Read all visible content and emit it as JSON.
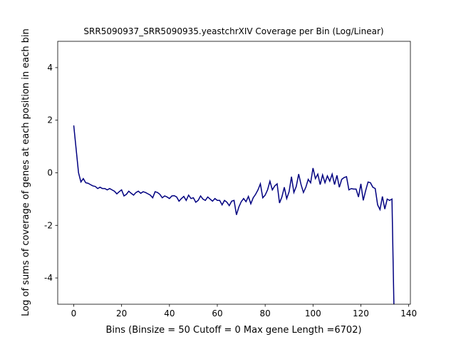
{
  "chart_data": {
    "type": "line",
    "title": "SRR5090937_SRR5090935.yeastchrXIV Coverage per Bin (Log/Linear)",
    "x_label": "Bins  (Binsize = 50 Cutoff = 0 Max gene Length =6702)",
    "y_label": "Log of sums of coverage of genes at each position in each bin",
    "color": "#000080",
    "x": [
      0,
      1,
      2,
      3,
      4,
      5,
      6,
      7,
      8,
      9,
      10,
      11,
      12,
      13,
      14,
      15,
      16,
      17,
      18,
      19,
      20,
      21,
      22,
      23,
      24,
      25,
      26,
      27,
      28,
      29,
      30,
      31,
      32,
      33,
      34,
      35,
      36,
      37,
      38,
      39,
      40,
      41,
      42,
      43,
      44,
      45,
      46,
      47,
      48,
      49,
      50,
      51,
      52,
      53,
      54,
      55,
      56,
      57,
      58,
      59,
      60,
      61,
      62,
      63,
      64,
      65,
      66,
      67,
      68,
      69,
      70,
      71,
      72,
      73,
      74,
      75,
      76,
      77,
      78,
      79,
      80,
      81,
      82,
      83,
      84,
      85,
      86,
      87,
      88,
      89,
      90,
      91,
      92,
      93,
      94,
      95,
      96,
      97,
      98,
      99,
      100,
      101,
      102,
      103,
      104,
      105,
      106,
      107,
      108,
      109,
      110,
      111,
      112,
      113,
      114,
      115,
      116,
      117,
      118,
      119,
      120,
      121,
      122,
      123,
      124,
      125,
      126,
      127,
      128,
      129,
      130,
      131,
      132,
      133,
      134
    ],
    "values": [
      1.8,
      0.9,
      0.0,
      -0.35,
      -0.22,
      -0.38,
      -0.4,
      -0.45,
      -0.5,
      -0.52,
      -0.6,
      -0.55,
      -0.6,
      -0.6,
      -0.65,
      -0.6,
      -0.65,
      -0.7,
      -0.8,
      -0.72,
      -0.65,
      -0.88,
      -0.82,
      -0.7,
      -0.78,
      -0.85,
      -0.75,
      -0.7,
      -0.78,
      -0.72,
      -0.75,
      -0.8,
      -0.85,
      -0.95,
      -0.72,
      -0.75,
      -0.82,
      -0.95,
      -0.88,
      -0.92,
      -0.98,
      -0.88,
      -0.87,
      -0.92,
      -1.08,
      -0.98,
      -0.9,
      -1.05,
      -0.85,
      -0.98,
      -0.95,
      -1.12,
      -1.05,
      -0.88,
      -1.0,
      -1.05,
      -0.92,
      -1.0,
      -1.08,
      -0.98,
      -1.05,
      -1.05,
      -1.22,
      -1.05,
      -1.12,
      -1.25,
      -1.08,
      -1.05,
      -1.6,
      -1.3,
      -1.1,
      -0.98,
      -1.1,
      -0.9,
      -1.18,
      -0.95,
      -0.82,
      -0.65,
      -0.42,
      -0.95,
      -0.85,
      -0.65,
      -0.32,
      -0.65,
      -0.5,
      -0.42,
      -1.15,
      -0.92,
      -0.55,
      -0.98,
      -0.72,
      -0.15,
      -0.75,
      -0.52,
      -0.05,
      -0.45,
      -0.75,
      -0.55,
      -0.25,
      -0.38,
      0.18,
      -0.22,
      -0.05,
      -0.45,
      -0.08,
      -0.38,
      -0.12,
      -0.32,
      -0.05,
      -0.45,
      -0.1,
      -0.55,
      -0.25,
      -0.18,
      -0.15,
      -0.65,
      -0.6,
      -0.62,
      -0.62,
      -0.92,
      -0.42,
      -1.05,
      -0.68,
      -0.35,
      -0.38,
      -0.55,
      -0.6,
      -1.22,
      -1.4,
      -0.9,
      -1.38,
      -1.0,
      -1.05,
      -1.0,
      -6.0
    ],
    "xlim": [
      -6.7,
      140.7
    ],
    "ylim": [
      -5,
      5
    ],
    "xticks": [
      0,
      20,
      40,
      60,
      80,
      100,
      120,
      140
    ],
    "yticks": [
      -4,
      -2,
      0,
      2,
      4
    ],
    "grid": false
  }
}
